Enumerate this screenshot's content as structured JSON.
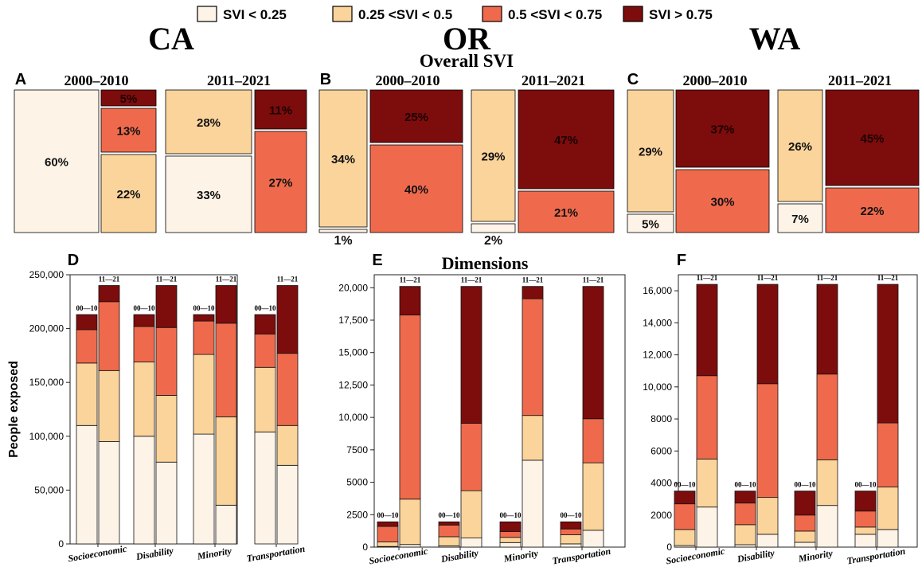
{
  "legend": {
    "items": [
      {
        "label": "SVI < 0.25",
        "color": "#fdf3e7"
      },
      {
        "label": "0.25 <SVI < 0.5",
        "color": "#fbd49c"
      },
      {
        "label": "0.5 <SVI < 0.75",
        "color": "#ef6a4c"
      },
      {
        "label": "SVI > 0.75",
        "color": "#7d0c0c"
      }
    ]
  },
  "states": [
    "CA",
    "OR",
    "WA"
  ],
  "section_titles": {
    "overall": "Overall SVI",
    "dimensions": "Dimensions"
  },
  "chart_data": [
    {
      "type": "treemap",
      "panel": "A",
      "state": "CA",
      "periods": [
        {
          "label": "2000–2010",
          "shares": {
            "lt25": "60%",
            "25to50": "22%",
            "50to75": "13%",
            "gt75": "5%"
          }
        },
        {
          "label": "2011–2021",
          "shares": {
            "lt25": "33%",
            "25to50": "28%",
            "50to75": "27%",
            "gt75": "11%"
          }
        }
      ]
    },
    {
      "type": "treemap",
      "panel": "B",
      "state": "OR",
      "periods": [
        {
          "label": "2000–2010",
          "shares": {
            "lt25": "1%",
            "25to50": "34%",
            "50to75": "40%",
            "gt75": "25%"
          }
        },
        {
          "label": "2011–2021",
          "shares": {
            "lt25": "2%",
            "25to50": "29%",
            "50to75": "21%",
            "gt75": "47%"
          }
        }
      ]
    },
    {
      "type": "treemap",
      "panel": "C",
      "state": "WA",
      "periods": [
        {
          "label": "2000–2010",
          "shares": {
            "lt25": "5%",
            "25to50": "29%",
            "50to75": "30%",
            "gt75": "37%"
          }
        },
        {
          "label": "2011–2021",
          "shares": {
            "lt25": "7%",
            "25to50": "26%",
            "50to75": "22%",
            "gt75": "45%"
          }
        }
      ]
    },
    {
      "type": "bar",
      "panel": "D",
      "state": "CA",
      "stacked": true,
      "ylabel": "People exposed",
      "ylim": [
        0,
        250000
      ],
      "yticks": [
        "0",
        "50,000",
        "100,000",
        "150,000",
        "200,000",
        "250,000"
      ],
      "ytick_values": [
        0,
        50000,
        100000,
        150000,
        200000,
        250000
      ],
      "categories": [
        "Socioeconomic",
        "Disability",
        "Minority",
        "Transportation"
      ],
      "period_labels": [
        "00—10",
        "11—21"
      ],
      "bars": [
        {
          "category": "Socioeconomic",
          "period": "00—10",
          "values": [
            110000,
            58000,
            31000,
            14000
          ]
        },
        {
          "category": "Socioeconomic",
          "period": "11—21",
          "values": [
            95000,
            66000,
            64000,
            15000
          ]
        },
        {
          "category": "Disability",
          "period": "00—10",
          "values": [
            100000,
            69000,
            33000,
            11000
          ]
        },
        {
          "category": "Disability",
          "period": "11—21",
          "values": [
            76000,
            62000,
            63000,
            39000
          ]
        },
        {
          "category": "Minority",
          "period": "00—10",
          "values": [
            102000,
            74000,
            31000,
            6000
          ]
        },
        {
          "category": "Minority",
          "period": "11—21",
          "values": [
            36000,
            82000,
            87000,
            35000
          ]
        },
        {
          "category": "Transportation",
          "period": "00—10",
          "values": [
            104000,
            60000,
            31000,
            18000
          ]
        },
        {
          "category": "Transportation",
          "period": "11—21",
          "values": [
            73000,
            37000,
            67000,
            63000
          ]
        }
      ]
    },
    {
      "type": "bar",
      "panel": "E",
      "state": "OR",
      "stacked": true,
      "ylim": [
        0,
        21000
      ],
      "yticks": [
        "0",
        "2500",
        "5000",
        "7500",
        "10,000",
        "12,500",
        "15,000",
        "17,500",
        "20,000"
      ],
      "ytick_values": [
        0,
        2500,
        5000,
        7500,
        10000,
        12500,
        15000,
        17500,
        20000
      ],
      "categories": [
        "Socioeconomic",
        "Disability",
        "Minority",
        "Transportation"
      ],
      "period_labels": [
        "00—10",
        "11—21"
      ],
      "bars": [
        {
          "category": "Socioeconomic",
          "period": "00—10",
          "values": [
            50,
            350,
            1200,
            350
          ]
        },
        {
          "category": "Socioeconomic",
          "period": "11—21",
          "values": [
            200,
            3500,
            14200,
            2200
          ]
        },
        {
          "category": "Disability",
          "period": "00—10",
          "values": [
            100,
            700,
            900,
            250
          ]
        },
        {
          "category": "Disability",
          "period": "11—21",
          "values": [
            700,
            3650,
            5200,
            10550
          ]
        },
        {
          "category": "Minority",
          "period": "00—10",
          "values": [
            350,
            400,
            450,
            750
          ]
        },
        {
          "category": "Minority",
          "period": "11—21",
          "values": [
            6700,
            3450,
            9000,
            950
          ]
        },
        {
          "category": "Transportation",
          "period": "00—10",
          "values": [
            250,
            700,
            450,
            550
          ]
        },
        {
          "category": "Transportation",
          "period": "11—21",
          "values": [
            1300,
            5200,
            3400,
            10200
          ]
        }
      ]
    },
    {
      "type": "bar",
      "panel": "F",
      "state": "WA",
      "stacked": true,
      "ylim": [
        0,
        17000
      ],
      "yticks": [
        "0",
        "2000",
        "4000",
        "6000",
        "8000",
        "10,000",
        "12,000",
        "14,000",
        "16,000"
      ],
      "ytick_values": [
        0,
        2000,
        4000,
        6000,
        8000,
        10000,
        12000,
        14000,
        16000
      ],
      "categories": [
        "Socioeconomic",
        "Disability",
        "Minority",
        "Transportation"
      ],
      "period_labels": [
        "00—10",
        "11—21"
      ],
      "bars": [
        {
          "category": "Socioeconomic",
          "period": "00—10",
          "values": [
            100,
            1000,
            1600,
            800
          ]
        },
        {
          "category": "Socioeconomic",
          "period": "11—21",
          "values": [
            2500,
            3000,
            5200,
            5700
          ]
        },
        {
          "category": "Disability",
          "period": "00—10",
          "values": [
            150,
            1250,
            1350,
            750
          ]
        },
        {
          "category": "Disability",
          "period": "11—21",
          "values": [
            800,
            2300,
            7100,
            6200
          ]
        },
        {
          "category": "Minority",
          "period": "00—10",
          "values": [
            300,
            700,
            1000,
            1500
          ]
        },
        {
          "category": "Minority",
          "period": "11—21",
          "values": [
            2600,
            2850,
            5350,
            5600
          ]
        },
        {
          "category": "Transportation",
          "period": "00—10",
          "values": [
            800,
            450,
            1000,
            1250
          ]
        },
        {
          "category": "Transportation",
          "period": "11—21",
          "values": [
            1100,
            2650,
            4000,
            8650
          ]
        }
      ]
    }
  ]
}
